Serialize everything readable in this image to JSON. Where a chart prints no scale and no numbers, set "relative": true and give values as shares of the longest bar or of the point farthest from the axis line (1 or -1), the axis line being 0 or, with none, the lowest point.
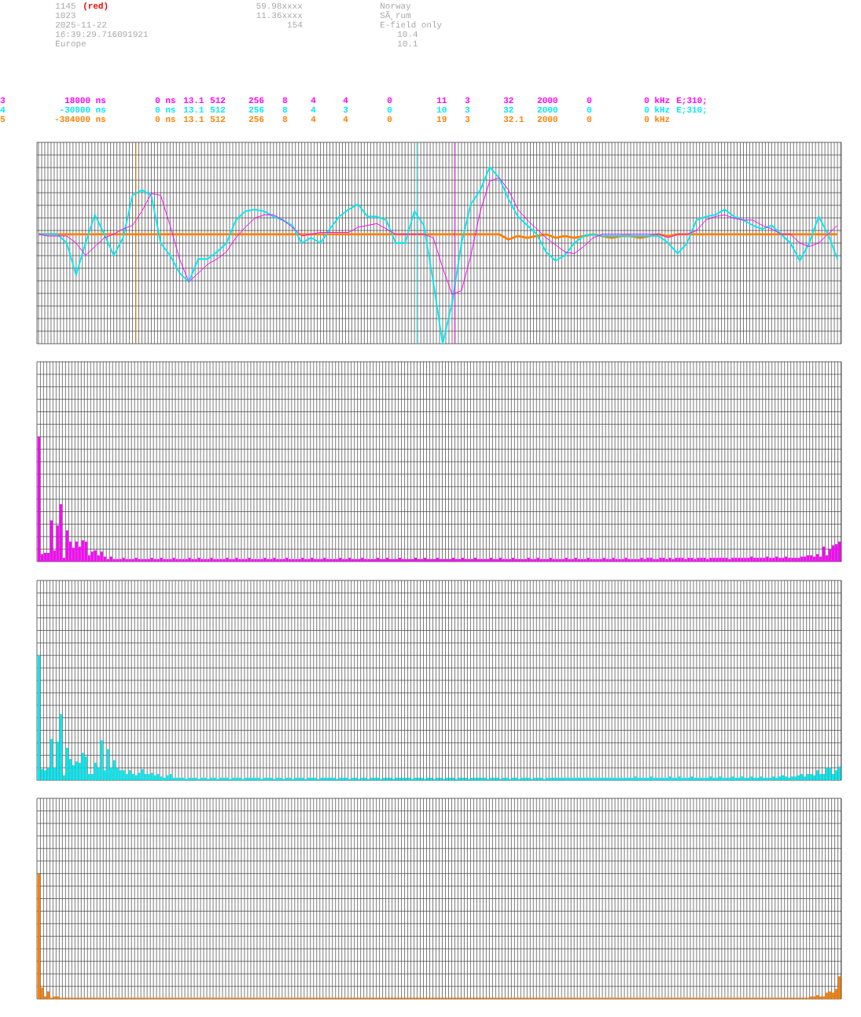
{
  "chart_data": [
    {
      "type": "line",
      "relative": true,
      "grid": true,
      "categories": [
        null,
        null,
        null,
        null,
        null,
        null,
        null,
        null,
        null,
        null,
        null,
        null,
        null,
        null,
        null,
        null,
        null,
        null,
        null,
        null,
        null,
        null,
        null,
        null,
        null,
        null,
        null,
        null,
        null,
        null,
        null,
        null,
        null,
        null,
        null,
        null,
        null,
        null,
        null,
        null,
        null,
        null,
        null,
        null,
        null,
        null,
        null,
        null,
        null,
        null,
        null,
        null,
        null,
        null,
        null,
        null,
        null,
        null,
        null,
        null,
        null,
        null,
        null,
        null,
        null,
        null,
        null,
        null,
        null,
        null,
        null,
        null,
        null,
        null,
        null,
        null,
        null,
        null,
        null,
        null,
        null,
        null,
        null,
        null,
        null,
        null
      ],
      "series": [
        {
          "color": "#ff00ff",
          "values": [
            0.62,
            0.61,
            0.61,
            0.61,
            0.57,
            0.5,
            0.55,
            0.6,
            0.62,
            0.65,
            0.67,
            0.75,
            0.85,
            0.84,
            0.67,
            0.48,
            0.35,
            0.4,
            0.45,
            0.48,
            0.52,
            0.6,
            0.66,
            0.71,
            0.73,
            0.73,
            0.7,
            0.66,
            0.61,
            0.62,
            0.63,
            0.63,
            0.63,
            0.63,
            0.66,
            0.67,
            0.68,
            0.65,
            0.62,
            null,
            null,
            0.62,
            0.6,
            0.43,
            0.28,
            0.3,
            0.5,
            0.75,
            0.92,
            0.94,
            0.87,
            0.76,
            0.7,
            0.65,
            0.6,
            0.56,
            0.52,
            0.51,
            0.55,
            0.6,
            0.62,
            0.62,
            0.62,
            0.62,
            0.62,
            0.62,
            0.62,
            0.6,
            0.62,
            0.62,
            0.64,
            0.7,
            0.72,
            0.73,
            0.71,
            0.7,
            0.7,
            0.67,
            0.65,
            0.62,
            0.62,
            0.57,
            0.55,
            0.57,
            0.62,
            0.67
          ]
        },
        {
          "color": "#00e8f0",
          "values": [
            0.62,
            0.62,
            0.62,
            0.57,
            0.39,
            0.57,
            0.73,
            0.62,
            0.5,
            0.6,
            0.84,
            0.87,
            0.84,
            0.57,
            0.5,
            0.4,
            0.35,
            0.48,
            0.48,
            0.52,
            0.57,
            0.7,
            0.75,
            0.76,
            0.75,
            0.72,
            0.7,
            0.67,
            0.57,
            0.6,
            0.57,
            0.65,
            0.72,
            0.76,
            0.79,
            0.72,
            0.72,
            0.7,
            0.57,
            0.57,
            0.75,
            0.67,
            0.35,
            0,
            0.23,
            0.57,
            0.79,
            0.87,
            1,
            0.94,
            0.82,
            0.72,
            0.67,
            0.62,
            0.52,
            0.47,
            0.5,
            0.57,
            0.61,
            0.62,
            0.61,
            0.61,
            0.61,
            0.61,
            0.61,
            0.61,
            0.61,
            0.57,
            0.51,
            0.57,
            0.7,
            0.72,
            0.73,
            0.76,
            0.72,
            0.7,
            0.67,
            0.65,
            0.67,
            0.62,
            0.57,
            0.47,
            0.57,
            0.72,
            0.62,
            0.48
          ]
        },
        {
          "color": "#ff8000",
          "values": [
            0.62,
            0.62,
            0.62,
            0.62,
            0.62,
            0.62,
            0.62,
            0.62,
            0.62,
            0.62,
            0.62,
            0.62,
            0.62,
            0.62,
            0.62,
            0.62,
            0.62,
            0.62,
            0.62,
            0.62,
            0.62,
            0.62,
            0.62,
            0.62,
            0.62,
            0.62,
            0.62,
            0.62,
            0.62,
            0.62,
            0.62,
            0.62,
            0.62,
            0.62,
            0.62,
            0.62,
            0.62,
            0.62,
            0.62,
            0.62,
            0.62,
            0.62,
            0.62,
            0.62,
            0.62,
            0.62,
            0.62,
            0.62,
            0.62,
            0.62,
            0.59,
            0.61,
            0.6,
            0.61,
            0.62,
            0.6,
            0.61,
            0.6,
            0.61,
            0.62,
            0.61,
            0.6,
            0.61,
            0.61,
            0.6,
            0.61,
            0.62,
            0.61,
            0.62,
            0.62,
            0.62,
            0.62,
            0.62,
            0.62,
            0.62,
            0.62,
            0.62,
            0.62,
            0.62,
            0.62,
            0.62,
            0.62,
            0.62,
            0.62,
            0.62,
            0.62
          ]
        }
      ],
      "annotations": [
        "1145",
        "(red)",
        "1023",
        "2025-11-22",
        "16:39:29.716091921",
        "Europe",
        "59.98xxxx",
        "11.36xxxx",
        "154",
        "Norway",
        "SÃ¸rum",
        "E-field only",
        "10.4",
        "10.1"
      ]
    },
    {
      "type": "bar",
      "relative": true,
      "grid": true,
      "color": "#ff00ff",
      "categories": [
        null,
        null,
        null,
        null,
        null,
        null,
        null,
        null,
        null,
        null,
        null,
        null,
        null,
        null,
        null,
        null,
        null,
        null,
        null,
        null,
        null,
        null,
        null,
        null,
        null,
        null,
        null,
        null,
        null,
        null,
        null,
        null,
        null,
        null,
        null,
        null,
        null,
        null,
        null,
        null,
        null,
        null,
        null,
        null,
        null,
        null,
        null,
        null,
        null,
        null,
        null,
        null,
        null,
        null,
        null,
        null,
        null,
        null,
        null,
        null,
        null,
        null,
        null,
        null,
        null,
        null,
        null,
        null,
        null,
        null,
        null,
        null,
        null,
        null,
        null,
        null,
        null,
        null,
        null,
        null,
        null,
        null,
        null,
        null,
        null,
        null,
        null,
        null,
        null,
        null,
        null,
        null,
        null,
        null,
        null,
        null,
        null,
        null,
        null,
        null,
        null,
        null,
        null,
        null,
        null,
        null,
        null,
        null,
        null,
        null,
        null,
        null,
        null,
        null,
        null,
        null,
        null,
        null,
        null,
        null,
        null,
        null,
        null,
        null,
        null,
        null,
        null,
        null,
        null,
        null,
        null,
        null,
        null,
        null,
        null,
        null,
        null,
        null,
        null,
        null,
        null,
        null,
        null,
        null,
        null,
        null,
        null,
        null,
        null,
        null,
        null,
        null,
        null,
        null,
        null,
        null,
        null,
        null,
        null,
        null,
        null,
        null,
        null,
        null,
        null,
        null,
        null,
        null,
        null,
        null,
        null,
        null,
        null,
        null,
        null,
        null,
        null,
        null,
        null,
        null,
        null,
        null,
        null,
        null,
        null,
        null,
        null,
        null,
        null,
        null,
        null,
        null,
        null,
        null,
        null,
        null,
        null,
        null,
        null,
        null,
        null,
        null,
        null,
        null,
        null,
        null,
        null,
        null,
        null,
        null,
        null,
        null,
        null,
        null,
        null,
        null,
        null,
        null,
        null,
        null,
        null,
        null,
        null,
        null,
        null,
        null,
        null,
        null,
        null,
        null,
        null,
        null,
        null,
        null,
        null,
        null,
        null,
        null,
        null,
        null,
        null,
        null,
        null,
        null,
        null,
        null,
        null,
        null,
        null,
        null,
        null,
        null,
        null,
        null,
        null,
        null
      ],
      "values": [
        1,
        0.06,
        0.07,
        0.07,
        0.33,
        0.09,
        0.29,
        0.46,
        0.03,
        0.25,
        0.16,
        0.11,
        0.16,
        0.12,
        0.17,
        0.16,
        0.05,
        0.08,
        0.09,
        0.05,
        0.08,
        0.04,
        0.02,
        0.04,
        0.02,
        0.02,
        0.02,
        0.03,
        0.02,
        0.02,
        0.02,
        0.03,
        0.02,
        0.02,
        0.02,
        0.02,
        0.03,
        0.02,
        0.02,
        0.03,
        0.02,
        0.02,
        0.02,
        0.03,
        0.02,
        0.02,
        0.02,
        0.02,
        0.03,
        0.02,
        0.02,
        0.03,
        0.02,
        0.02,
        0.02,
        0.03,
        0.02,
        0.02,
        0.02,
        0.02,
        0.03,
        0.02,
        0.02,
        0.03,
        0.02,
        0.02,
        0.02,
        0.03,
        0.02,
        0.02,
        0.02,
        0.02,
        0.03,
        0.02,
        0.02,
        0.03,
        0.02,
        0.02,
        0.02,
        0.03,
        0.02,
        0.02,
        0.02,
        0.02,
        0.03,
        0.02,
        0.02,
        0.03,
        0.02,
        0.02,
        0.02,
        0.03,
        0.02,
        0.02,
        0.02,
        0.02,
        0.03,
        0.02,
        0.02,
        0.03,
        0.02,
        0.02,
        0.02,
        0.03,
        0.02,
        0.02,
        0.02,
        0.02,
        0.03,
        0.02,
        0.02,
        0.03,
        0.02,
        0.02,
        0.02,
        0.03,
        0.02,
        0.02,
        0.02,
        0.02,
        0.03,
        0.02,
        0.02,
        0.03,
        0.02,
        0.02,
        0.02,
        0.03,
        0.02,
        0.02,
        0.02,
        0.02,
        0.03,
        0.02,
        0.02,
        0.03,
        0.02,
        0.02,
        0.02,
        0.03,
        0.02,
        0.02,
        0.02,
        0.02,
        0.03,
        0.02,
        0.02,
        0.03,
        0.02,
        0.02,
        0.02,
        0.03,
        0.02,
        0.02,
        0.02,
        0.02,
        0.03,
        0.02,
        0.02,
        0.03,
        0.02,
        0.02,
        0.02,
        0.03,
        0.02,
        0.02,
        0.02,
        0.02,
        0.03,
        0.02,
        0.02,
        0.03,
        0.02,
        0.02,
        0.02,
        0.03,
        0.02,
        0.02,
        0.02,
        0.02,
        0.03,
        0.02,
        0.02,
        0.03,
        0.02,
        0.02,
        0.02,
        0.03,
        0.02,
        0.02,
        0.02,
        0.02,
        0.03,
        0.02,
        0.03,
        0.03,
        0.02,
        0.02,
        0.03,
        0.03,
        0.02,
        0.03,
        0.02,
        0.03,
        0.03,
        0.03,
        0.02,
        0.03,
        0.03,
        0.02,
        0.03,
        0.03,
        0.03,
        0.02,
        0.03,
        0.03,
        0.03,
        0.03,
        0.03,
        0.03,
        0.02,
        0.03,
        0.03,
        0.03,
        0.03,
        0.03,
        0.03,
        0.04,
        0.03,
        0.03,
        0.03,
        0.03,
        0.04,
        0.03,
        0.03,
        0.04,
        0.03,
        0.03,
        0.04,
        0.03,
        0.03,
        0.03,
        0.03,
        0.04,
        0.04,
        0.05,
        0.05,
        0.04,
        0.06,
        0.04,
        0.12,
        0.05,
        0.1,
        0.13,
        0.14,
        0.16
      ],
      "annotations": [
        "3",
        "18000 ns",
        "0 ns",
        "13.1",
        "512",
        "256",
        "8",
        "4",
        "4",
        "0",
        "11",
        "3",
        "32",
        "2000",
        "0",
        "0 kHz",
        "E;310;"
      ]
    },
    {
      "type": "bar",
      "relative": true,
      "grid": true,
      "color": "#00e8f0",
      "categories": [
        null,
        null,
        null,
        null,
        null,
        null,
        null,
        null,
        null,
        null,
        null,
        null,
        null,
        null,
        null,
        null,
        null,
        null,
        null,
        null,
        null,
        null,
        null,
        null,
        null,
        null,
        null,
        null,
        null,
        null,
        null,
        null,
        null,
        null,
        null,
        null,
        null,
        null,
        null,
        null,
        null,
        null,
        null,
        null,
        null,
        null,
        null,
        null,
        null,
        null,
        null,
        null,
        null,
        null,
        null,
        null,
        null,
        null,
        null,
        null,
        null,
        null,
        null,
        null,
        null,
        null,
        null,
        null,
        null,
        null,
        null,
        null,
        null,
        null,
        null,
        null,
        null,
        null,
        null,
        null,
        null,
        null,
        null,
        null,
        null,
        null,
        null,
        null,
        null,
        null,
        null,
        null,
        null,
        null,
        null,
        null,
        null,
        null,
        null,
        null,
        null,
        null,
        null,
        null,
        null,
        null,
        null,
        null,
        null,
        null,
        null,
        null,
        null,
        null,
        null,
        null,
        null,
        null,
        null,
        null,
        null,
        null,
        null,
        null,
        null,
        null,
        null,
        null,
        null,
        null,
        null,
        null,
        null,
        null,
        null,
        null,
        null,
        null,
        null,
        null,
        null,
        null,
        null,
        null,
        null,
        null,
        null,
        null,
        null,
        null,
        null,
        null,
        null,
        null,
        null,
        null,
        null,
        null,
        null,
        null,
        null,
        null,
        null,
        null,
        null,
        null,
        null,
        null,
        null,
        null,
        null,
        null,
        null,
        null,
        null,
        null,
        null,
        null,
        null,
        null,
        null,
        null,
        null,
        null,
        null,
        null,
        null,
        null,
        null,
        null,
        null,
        null,
        null,
        null,
        null,
        null,
        null,
        null,
        null,
        null,
        null,
        null,
        null,
        null,
        null,
        null,
        null,
        null,
        null,
        null,
        null,
        null,
        null,
        null,
        null,
        null,
        null,
        null,
        null,
        null,
        null,
        null,
        null,
        null,
        null,
        null,
        null,
        null,
        null,
        null,
        null,
        null,
        null,
        null,
        null,
        null,
        null,
        null,
        null,
        null,
        null,
        null,
        null,
        null,
        null,
        null,
        null,
        null,
        null,
        null,
        null,
        null,
        null,
        null,
        null,
        null
      ],
      "values": [
        1,
        0.09,
        0.08,
        0.1,
        0.33,
        0.1,
        0.31,
        0.53,
        0.04,
        0.26,
        0.17,
        0.12,
        0.15,
        0.14,
        0.22,
        0.19,
        0.05,
        0.05,
        0.14,
        0.1,
        0.32,
        0.08,
        0.25,
        0.1,
        0.16,
        0.1,
        0.08,
        0.08,
        0.05,
        0.08,
        0.05,
        0.04,
        0.06,
        0.09,
        0.05,
        0.05,
        0.06,
        0.04,
        0.05,
        0.03,
        0.02,
        0.04,
        0.05,
        0.02,
        0.02,
        0.02,
        0.02,
        0.01,
        0.02,
        0.02,
        0.02,
        0.01,
        0.02,
        0.02,
        0.01,
        0.02,
        0.02,
        0.01,
        0.02,
        0.02,
        0.02,
        0.01,
        0.02,
        0.02,
        0.02,
        0.01,
        0.02,
        0.02,
        0.02,
        0.02,
        0.02,
        0.01,
        0.02,
        0.02,
        0.02,
        0.01,
        0.02,
        0.02,
        0.01,
        0.02,
        0.02,
        0.01,
        0.02,
        0.02,
        0.02,
        0.01,
        0.02,
        0.02,
        0.02,
        0.01,
        0.02,
        0.02,
        0.02,
        0.02,
        0.02,
        0.01,
        0.02,
        0.02,
        0.02,
        0.01,
        0.02,
        0.02,
        0.01,
        0.02,
        0.02,
        0.01,
        0.02,
        0.02,
        0.02,
        0.01,
        0.02,
        0.02,
        0.02,
        0.01,
        0.02,
        0.02,
        0.02,
        0.02,
        0.02,
        0.01,
        0.02,
        0.02,
        0.02,
        0.01,
        0.02,
        0.02,
        0.01,
        0.02,
        0.02,
        0.01,
        0.02,
        0.02,
        0.02,
        0.01,
        0.02,
        0.02,
        0.02,
        0.01,
        0.02,
        0.02,
        0.02,
        0.02,
        0.02,
        0.01,
        0.02,
        0.02,
        0.02,
        0.01,
        0.02,
        0.02,
        0.01,
        0.02,
        0.02,
        0.01,
        0.02,
        0.02,
        0.02,
        0.01,
        0.02,
        0.02,
        0.02,
        0.01,
        0.02,
        0.02,
        0.02,
        0.02,
        0.02,
        0.02,
        0.02,
        0.02,
        0.02,
        0.02,
        0.02,
        0.02,
        0.02,
        0.02,
        0.02,
        0.02,
        0.02,
        0.02,
        0.02,
        0.02,
        0.02,
        0.02,
        0.02,
        0.02,
        0.02,
        0.02,
        0.02,
        0.02,
        0.03,
        0.02,
        0.02,
        0.02,
        0.02,
        0.03,
        0.02,
        0.02,
        0.02,
        0.02,
        0.02,
        0.03,
        0.02,
        0.02,
        0.03,
        0.02,
        0.02,
        0.02,
        0.03,
        0.02,
        0.02,
        0.02,
        0.02,
        0.02,
        0.03,
        0.02,
        0.02,
        0.03,
        0.02,
        0.02,
        0.02,
        0.03,
        0.02,
        0.02,
        0.03,
        0.02,
        0.02,
        0.03,
        0.02,
        0.02,
        0.03,
        0.02,
        0.02,
        0.02,
        0.03,
        0.02,
        0.03,
        0.04,
        0.03,
        0.02,
        0.03,
        0.03,
        0.04,
        0.05,
        0.03,
        0.05,
        0.05,
        0.04,
        0.08,
        0.05,
        0.05,
        0.1,
        0.1,
        0.05,
        0.08,
        0.11
      ],
      "annotations": [
        "4",
        "-30000 ns",
        "0 ns",
        "13.1",
        "512",
        "256",
        "8",
        "4",
        "3",
        "0",
        "10",
        "3",
        "32",
        "2000",
        "0",
        "0 kHz",
        "E;310;"
      ]
    },
    {
      "type": "bar",
      "relative": true,
      "grid": true,
      "color": "#ff8000",
      "categories": [
        null,
        null,
        null,
        null,
        null,
        null,
        null,
        null,
        null,
        null,
        null,
        null,
        null,
        null,
        null,
        null,
        null,
        null,
        null,
        null,
        null,
        null,
        null,
        null,
        null,
        null,
        null,
        null,
        null,
        null,
        null,
        null,
        null,
        null,
        null,
        null,
        null,
        null,
        null,
        null,
        null,
        null,
        null,
        null,
        null,
        null,
        null,
        null,
        null,
        null,
        null,
        null,
        null,
        null,
        null,
        null,
        null,
        null,
        null,
        null,
        null,
        null,
        null,
        null,
        null,
        null,
        null,
        null,
        null,
        null,
        null,
        null,
        null,
        null,
        null,
        null,
        null,
        null,
        null,
        null,
        null,
        null,
        null,
        null,
        null,
        null,
        null,
        null,
        null,
        null,
        null,
        null,
        null,
        null,
        null,
        null,
        null,
        null,
        null,
        null,
        null,
        null,
        null,
        null,
        null,
        null,
        null,
        null,
        null,
        null,
        null,
        null,
        null,
        null,
        null,
        null,
        null,
        null,
        null,
        null,
        null,
        null,
        null,
        null,
        null,
        null,
        null,
        null,
        null,
        null,
        null,
        null,
        null,
        null,
        null,
        null,
        null,
        null,
        null,
        null,
        null,
        null,
        null,
        null,
        null,
        null,
        null,
        null,
        null,
        null,
        null,
        null,
        null,
        null,
        null,
        null,
        null,
        null,
        null,
        null,
        null,
        null,
        null,
        null,
        null,
        null,
        null,
        null,
        null,
        null,
        null,
        null,
        null,
        null,
        null,
        null,
        null,
        null,
        null,
        null,
        null,
        null,
        null,
        null,
        null,
        null,
        null,
        null,
        null,
        null,
        null,
        null,
        null,
        null,
        null,
        null,
        null,
        null,
        null,
        null,
        null,
        null,
        null,
        null,
        null,
        null,
        null,
        null,
        null,
        null,
        null,
        null,
        null,
        null,
        null,
        null,
        null,
        null,
        null,
        null,
        null,
        null,
        null,
        null,
        null,
        null,
        null,
        null,
        null,
        null,
        null,
        null,
        null,
        null,
        null,
        null,
        null,
        null,
        null,
        null,
        null,
        null,
        null,
        null,
        null,
        null,
        null,
        null,
        null,
        null,
        null,
        null,
        null,
        null,
        null,
        null
      ],
      "values": [
        1,
        0.09,
        0.02,
        0.06,
        0.01,
        0.02,
        0.02,
        0.01,
        0.01,
        0.01,
        0.01,
        0.01,
        0.01,
        0.01,
        0.01,
        0.01,
        0.01,
        0.01,
        0.01,
        0.01,
        0.01,
        0.01,
        0.01,
        0.01,
        0.01,
        0.01,
        0.01,
        0.01,
        0.01,
        0.01,
        0.01,
        0.01,
        0.01,
        0.01,
        0.01,
        0.01,
        0.01,
        0.01,
        0.01,
        0.01,
        0.01,
        0.01,
        0.01,
        0.01,
        0.01,
        0.01,
        0.01,
        0.01,
        0.01,
        0.01,
        0.01,
        0.01,
        0.01,
        0.01,
        0.01,
        0.01,
        0.01,
        0.01,
        0.01,
        0.01,
        0.01,
        0.01,
        0.01,
        0.01,
        0.01,
        0.01,
        0.01,
        0.01,
        0.01,
        0.01,
        0.01,
        0.01,
        0.01,
        0.01,
        0.01,
        0.01,
        0.01,
        0.01,
        0.01,
        0.01,
        0.01,
        0.01,
        0.01,
        0.01,
        0.01,
        0.01,
        0.01,
        0.01,
        0.01,
        0.01,
        0.01,
        0.01,
        0.01,
        0.01,
        0.01,
        0.01,
        0.01,
        0.01,
        0.01,
        0.01,
        0.01,
        0.01,
        0.01,
        0.01,
        0.01,
        0.01,
        0.01,
        0.01,
        0.01,
        0.01,
        0.01,
        0.01,
        0.01,
        0.01,
        0.01,
        0.01,
        0.01,
        0.01,
        0.01,
        0.01,
        0.01,
        0.01,
        0.01,
        0.01,
        0.01,
        0.01,
        0.01,
        0.01,
        0.01,
        0.01,
        0.01,
        0.01,
        0.01,
        0.01,
        0.01,
        0.01,
        0.01,
        0.01,
        0.01,
        0.01,
        0.01,
        0.01,
        0.01,
        0.01,
        0.01,
        0.01,
        0.01,
        0.01,
        0.01,
        0.01,
        0.01,
        0.01,
        0.01,
        0.01,
        0.01,
        0.01,
        0.01,
        0.01,
        0.01,
        0.01,
        0.01,
        0.01,
        0.01,
        0.01,
        0.01,
        0.01,
        0.01,
        0.01,
        0.01,
        0.01,
        0.01,
        0.01,
        0.01,
        0.01,
        0.01,
        0.01,
        0.01,
        0.01,
        0.01,
        0.01,
        0.01,
        0.01,
        0.01,
        0.01,
        0.01,
        0.01,
        0.01,
        0.01,
        0.01,
        0.01,
        0.01,
        0.01,
        0.01,
        0.01,
        0.01,
        0.01,
        0.01,
        0.01,
        0.01,
        0.01,
        0.01,
        0.01,
        0.01,
        0.01,
        0.01,
        0.01,
        0.01,
        0.01,
        0.01,
        0.01,
        0.01,
        0.01,
        0.01,
        0.01,
        0.01,
        0.01,
        0.01,
        0.01,
        0.01,
        0.01,
        0.01,
        0.01,
        0.01,
        0.01,
        0.01,
        0.01,
        0.01,
        0.01,
        0.01,
        0.01,
        0.01,
        0.01,
        0.01,
        0.01,
        0.01,
        0.01,
        0.01,
        0.01,
        0.01,
        0.01,
        0.01,
        0.01,
        0.01,
        0.01,
        0.01,
        0.01,
        0.02,
        0.02,
        0.03,
        0.02,
        0.02,
        0.05,
        0.06,
        0.05,
        0.08,
        0.18
      ],
      "annotations": [
        "5",
        "-384000 ns",
        "0 ns",
        "13.1",
        "512",
        "256",
        "8",
        "4",
        "4",
        "0",
        "19",
        "3",
        "32.1",
        "2000",
        "0",
        "0 kHz"
      ]
    }
  ]
}
